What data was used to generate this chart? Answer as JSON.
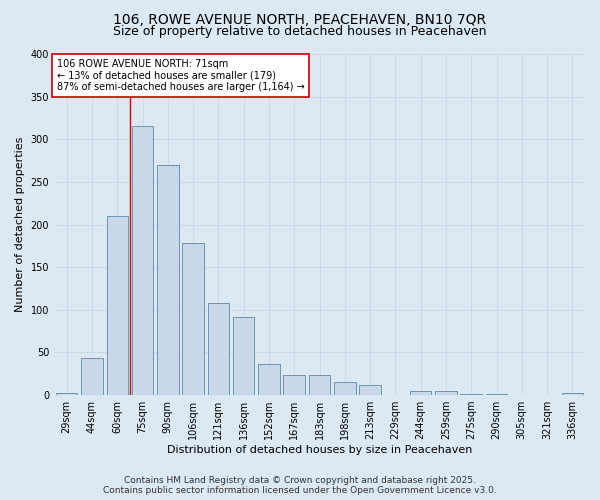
{
  "title": "106, ROWE AVENUE NORTH, PEACEHAVEN, BN10 7QR",
  "subtitle": "Size of property relative to detached houses in Peacehaven",
  "xlabel": "Distribution of detached houses by size in Peacehaven",
  "ylabel": "Number of detached properties",
  "categories": [
    "29sqm",
    "44sqm",
    "60sqm",
    "75sqm",
    "90sqm",
    "106sqm",
    "121sqm",
    "136sqm",
    "152sqm",
    "167sqm",
    "183sqm",
    "198sqm",
    "213sqm",
    "229sqm",
    "244sqm",
    "259sqm",
    "275sqm",
    "290sqm",
    "305sqm",
    "321sqm",
    "336sqm"
  ],
  "values": [
    3,
    43,
    210,
    315,
    270,
    178,
    108,
    92,
    37,
    23,
    23,
    15,
    12,
    0,
    5,
    5,
    1,
    1,
    0,
    0,
    2
  ],
  "bar_color": "#c8d8e8",
  "bar_edge_color": "#5a8aaa",
  "property_line_label": "106 ROWE AVENUE NORTH: 71sqm",
  "annotation_line1": "← 13% of detached houses are smaller (179)",
  "annotation_line2": "87% of semi-detached houses are larger (1,164) →",
  "annotation_box_color": "#ffffff",
  "annotation_box_edge_color": "#cc0000",
  "property_line_color": "#cc0000",
  "ylim": [
    0,
    400
  ],
  "yticks": [
    0,
    50,
    100,
    150,
    200,
    250,
    300,
    350,
    400
  ],
  "grid_color": "#c8d8ea",
  "background_color": "#dce8f2",
  "footer_line1": "Contains HM Land Registry data © Crown copyright and database right 2025.",
  "footer_line2": "Contains public sector information licensed under the Open Government Licence v3.0.",
  "title_fontsize": 10,
  "subtitle_fontsize": 9,
  "axis_label_fontsize": 8,
  "tick_fontsize": 7,
  "annotation_fontsize": 7,
  "footer_fontsize": 6.5
}
